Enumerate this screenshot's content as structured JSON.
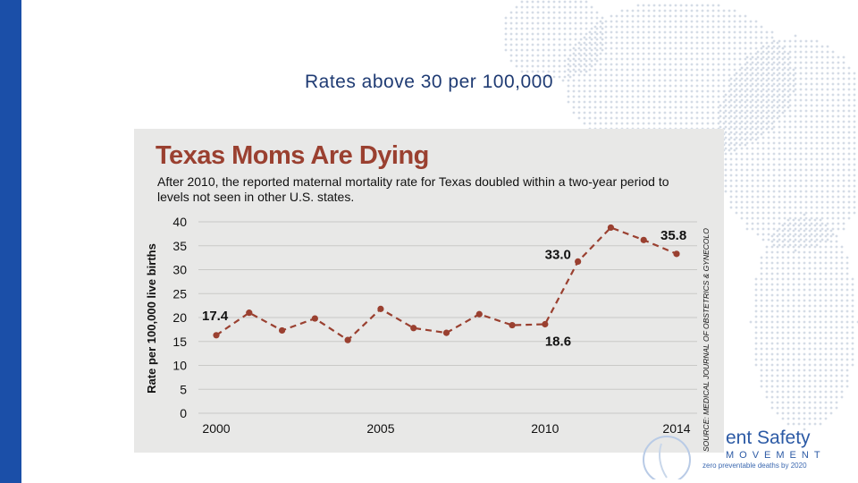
{
  "slide": {
    "title": "Rates above 30 per 100,000"
  },
  "colors": {
    "accent_bar": "#1b4fa8",
    "title_color": "#1f3b73",
    "chart_red": "#9a4030",
    "panel_bg": "#e8e8e7"
  },
  "chart_data": {
    "type": "line",
    "title": "Texas Moms Are Dying",
    "subtitle": "After 2010, the reported maternal mortality rate for Texas doubled within a two-year period to levels not seen in other U.S. states.",
    "ylabel": "Rate per 100,000 live births",
    "xlabel": "",
    "ylim": [
      0,
      40
    ],
    "yticks": [
      "0",
      "5",
      "10",
      "15",
      "20",
      "25",
      "30",
      "35",
      "40"
    ],
    "xticks": [
      "2000",
      "2005",
      "2010",
      "2014"
    ],
    "x": [
      2000,
      2001,
      2002,
      2003,
      2004,
      2005,
      2006,
      2007,
      2008,
      2009,
      2010,
      2011,
      2012,
      2013,
      2014
    ],
    "series": [
      {
        "values": [
          16.3,
          21.0,
          17.3,
          19.8,
          15.3,
          21.8,
          17.8,
          16.8,
          20.7,
          18.4,
          18.6,
          31.7,
          38.8,
          36.2,
          33.3
        ]
      }
    ],
    "annotations": [
      "17.4",
      "18.6",
      "33.0",
      "35.8"
    ],
    "source": "SOURCE: MEDICAL JOURNAL OF OBSTETRICS & GYNECOLOGY",
    "grid": true,
    "line_style": "dashed"
  },
  "logo": {
    "name": "ent Safety",
    "sub": "MOVEMENT",
    "tagline": "zero preventable deaths by 2020"
  }
}
